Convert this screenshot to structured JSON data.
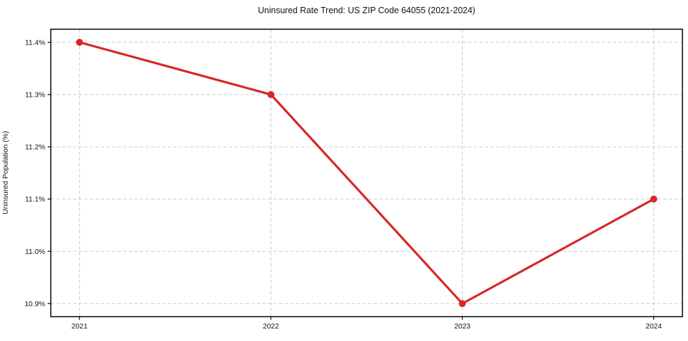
{
  "page": {
    "background_color": "#ffffff"
  },
  "chart_data": {
    "type": "line",
    "title": "Uninsured Rate Trend: US ZIP Code 64055 (2021-2024)",
    "xlabel": "",
    "ylabel": "Uninsured Population (%)",
    "x": [
      2021,
      2022,
      2023,
      2024
    ],
    "x_tick_labels": [
      "2021",
      "2022",
      "2023",
      "2024"
    ],
    "series": [
      {
        "name": "Uninsured Population (%)",
        "values": [
          11.4,
          11.3,
          10.9,
          11.1
        ],
        "color": "#d62728",
        "marker": "circle"
      }
    ],
    "y_ticks": [
      10.9,
      11.0,
      11.1,
      11.2,
      11.3,
      11.4
    ],
    "y_tick_labels": [
      "10.9%",
      "11.0%",
      "11.1%",
      "11.2%",
      "11.3%",
      "11.4%"
    ],
    "xlim": [
      2020.85,
      2024.15
    ],
    "ylim": [
      10.875,
      11.425
    ],
    "grid": true,
    "grid_style": "dashed",
    "grid_color": "#cccccc",
    "spine_color": "#000000",
    "legend": "none"
  }
}
